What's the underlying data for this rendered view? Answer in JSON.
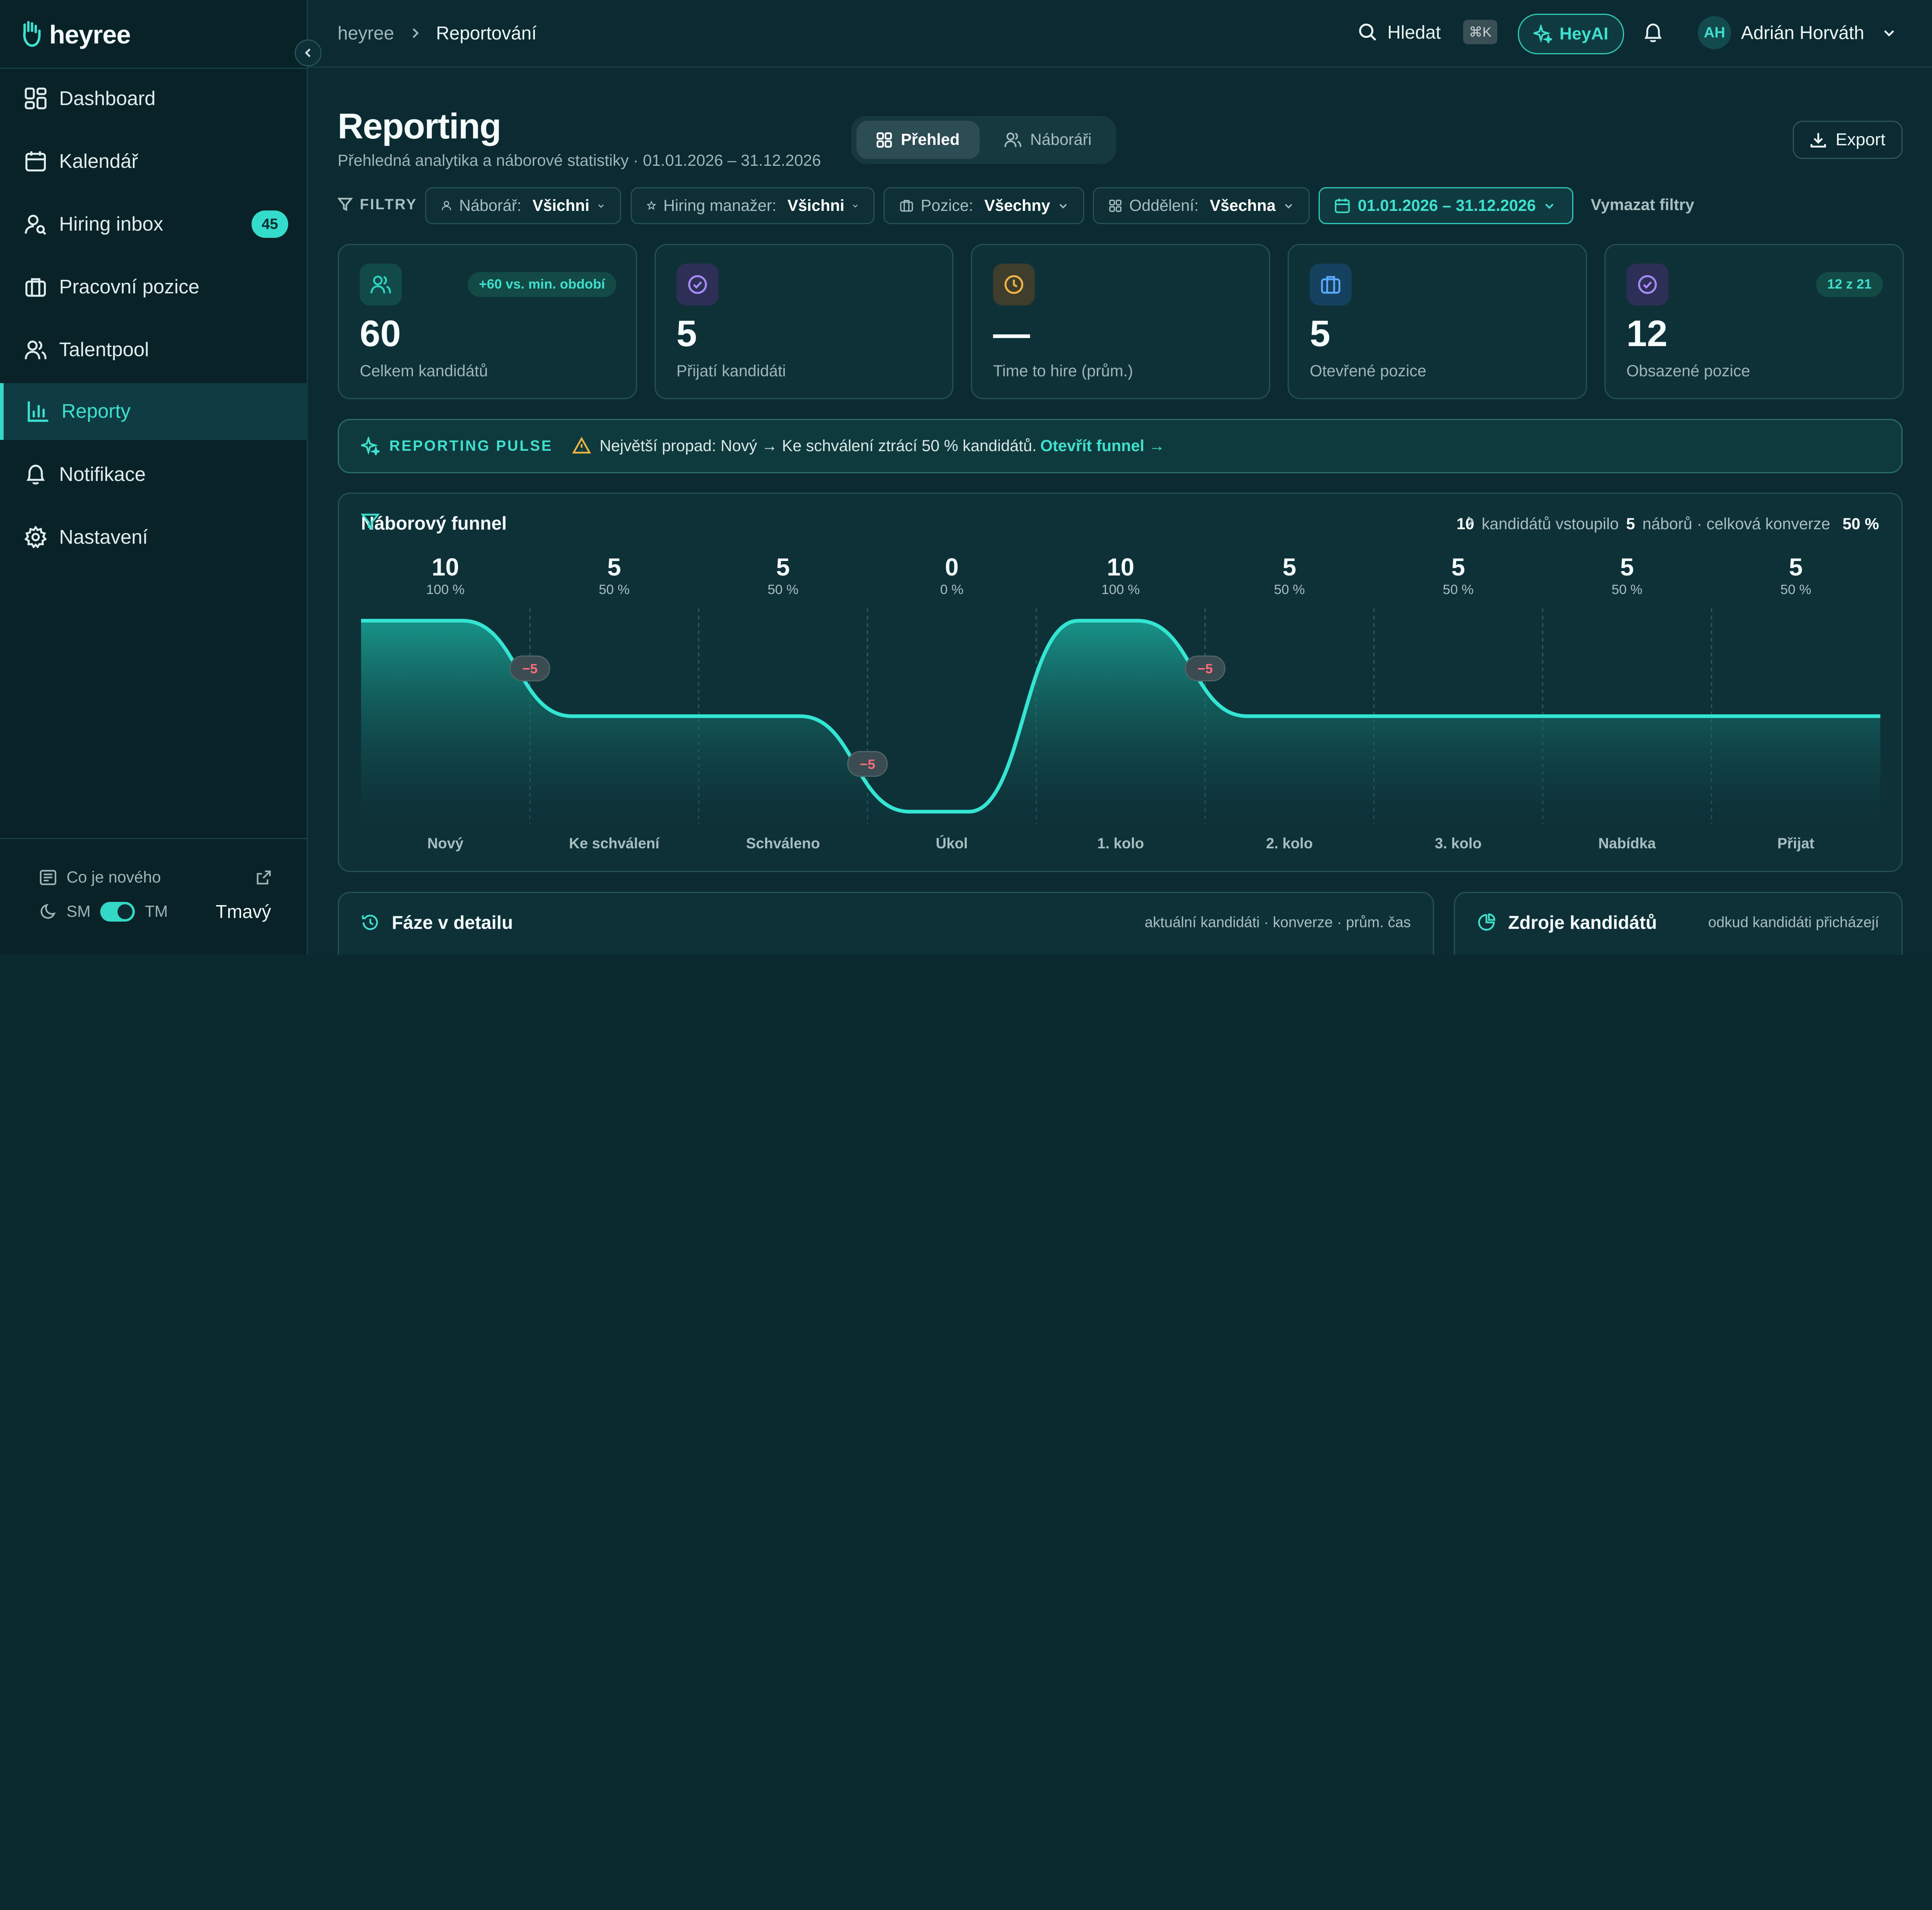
{
  "app": {
    "logo_text": "heyree"
  },
  "sidebar": {
    "items": [
      {
        "label": "Dashboard",
        "icon": "dashboard-icon"
      },
      {
        "label": "Kalendář",
        "icon": "calendar-icon"
      },
      {
        "label": "Hiring inbox",
        "icon": "user-search-icon",
        "badge": "45"
      },
      {
        "label": "Pracovní pozice",
        "icon": "briefcase-icon"
      },
      {
        "label": "Talentpool",
        "icon": "users-icon"
      },
      {
        "label": "Reporty",
        "icon": "bar-chart-icon",
        "active": true
      },
      {
        "label": "Notifikace",
        "icon": "bell-icon"
      },
      {
        "label": "Nastavení",
        "icon": "gear-icon"
      }
    ],
    "whats_new": "Co je nového",
    "theme": {
      "light_short": "SM",
      "dark_short": "TM",
      "value": "Tmavý"
    }
  },
  "topbar": {
    "breadcrumb_root": "heyree",
    "breadcrumb_current": "Reportování",
    "search_label": "Hledat",
    "search_shortcut": "⌘K",
    "heyai_label": "HeyAI",
    "user_initials": "AH",
    "user_name": "Adrián Horváth"
  },
  "header": {
    "title": "Reporting",
    "subtitle": "Přehledná analytika a náborové statistiky · 01.01.2026 – 31.12.2026",
    "tabs": [
      {
        "label": "Přehled",
        "active": true
      },
      {
        "label": "Náboráři",
        "active": false
      }
    ],
    "export_label": "Export"
  },
  "filters": {
    "label": "FILTRY",
    "recruiter": {
      "label": "Náborář:",
      "value": "Všichni"
    },
    "hiring_manager": {
      "label": "Hiring manažer:",
      "value": "Všichni"
    },
    "position": {
      "label": "Pozice:",
      "value": "Všechny"
    },
    "department": {
      "label": "Oddělení:",
      "value": "Všechna"
    },
    "date_range": "01.01.2026 – 31.12.2026",
    "clear_label": "Vymazat filtry"
  },
  "kpis": [
    {
      "value": "60",
      "label": "Celkem kandidátů",
      "badge": "+60 vs. min. období",
      "icon": "users-icon",
      "accent": "#2fd3c1"
    },
    {
      "value": "5",
      "label": "Přijatí kandidáti",
      "badge": "",
      "icon": "check-circle-icon",
      "accent": "#a78bfa"
    },
    {
      "value": "—",
      "label": "Time to hire (prům.)",
      "badge": "",
      "icon": "clock-icon",
      "accent": "#f2b543"
    },
    {
      "value": "5",
      "label": "Otevřené pozice",
      "badge": "",
      "icon": "briefcase-icon",
      "accent": "#5aa9ff"
    },
    {
      "value": "12",
      "label": "Obsazené pozice",
      "badge": "12 z 21",
      "icon": "check-circle-icon",
      "accent": "#a78bfa"
    }
  ],
  "pulse": {
    "title": "REPORTING PULSE",
    "message": "Největší propad: Nový → Ke schválení ztrácí 50 % kandidátů.",
    "link": "Otevřít funnel →"
  },
  "funnel": {
    "title": "Náborový funnel",
    "summary": {
      "entered": "10",
      "entered_label": "kandidátů vstoupilo",
      "hires": "5",
      "hires_label": "náborů · celková konverze",
      "conversion": "50 %"
    },
    "drop_marker_label": "−5"
  },
  "chart_data": {
    "type": "area",
    "title": "Náborový funnel",
    "categories": [
      "Nový",
      "Ke schválení",
      "Schváleno",
      "Úkol",
      "1. kolo",
      "2. kolo",
      "3. kolo",
      "Nabídka",
      "Přijat"
    ],
    "values": [
      10,
      5,
      5,
      0,
      10,
      5,
      5,
      5,
      5
    ],
    "percent_labels": [
      "100 %",
      "50 %",
      "50 %",
      "0 %",
      "100 %",
      "50 %",
      "50 %",
      "50 %",
      "50 %"
    ],
    "drops": [
      {
        "after_index": 0,
        "value": -5
      },
      {
        "after_index": 2,
        "value": -5
      },
      {
        "after_index": 4,
        "value": -5
      }
    ],
    "ylim": [
      0,
      10
    ]
  },
  "bottom": {
    "phases": {
      "title": "Fáze v detailu",
      "subtitle": "aktuální kandidáti · konverze · prům. čas"
    },
    "sources": {
      "title": "Zdroje kandidátů",
      "subtitle": "odkud kandidáti přicházejí"
    }
  },
  "colors": {
    "accent": "#34d8c6",
    "background": "#0b2a31",
    "danger": "#ff6b7a"
  }
}
